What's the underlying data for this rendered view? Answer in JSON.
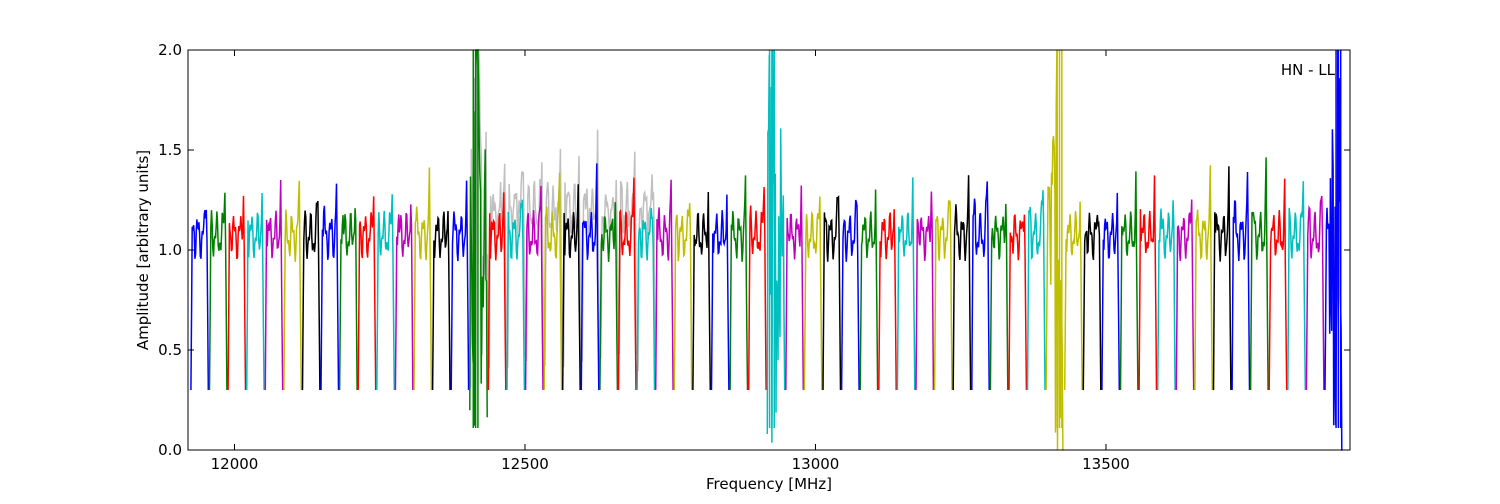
{
  "chart_data": {
    "type": "line",
    "title": "",
    "xlabel": "Frequency [MHz]",
    "ylabel": "Amplitude [arbitrary units]",
    "xlim": [
      11920,
      13920
    ],
    "ylim": [
      0.0,
      2.0
    ],
    "xticks": [
      12000,
      12500,
      13000,
      13500
    ],
    "xtick_labels": [
      "12000",
      "12500",
      "13000",
      "13500"
    ],
    "yticks": [
      0.0,
      0.5,
      1.0,
      1.5,
      2.0
    ],
    "ytick_labels": [
      "0.0",
      "0.5",
      "1.0",
      "1.5",
      "2.0"
    ],
    "grid": false,
    "legend": "none",
    "annotation": "HN - LL",
    "color_cycle": [
      "#0000ff",
      "#008000",
      "#ff0000",
      "#00bfbf",
      "#bf00bf",
      "#bfbf00",
      "#000000"
    ],
    "background_color": "#c0c0c0",
    "channel_width_mhz": 32,
    "channel_start_mhz": 11925,
    "channel_count": 62,
    "typical_shape": {
      "edge_low_amplitude": 0.3,
      "passband_amplitude": 1.15,
      "ripple_peak_amplitude": 1.35
    },
    "rfi_features": [
      {
        "frequency": 12415,
        "min": 0.11,
        "max": 2.0,
        "color": "#008000"
      },
      {
        "frequency": 12925,
        "min": 0.11,
        "max": 2.0,
        "color": "#00bfbf"
      },
      {
        "frequency": 13420,
        "min": 0.11,
        "max": 2.0,
        "color": "#bfbf00"
      },
      {
        "frequency": 13900,
        "min": 0.11,
        "max": 2.0,
        "color": "#0000ff"
      }
    ]
  }
}
